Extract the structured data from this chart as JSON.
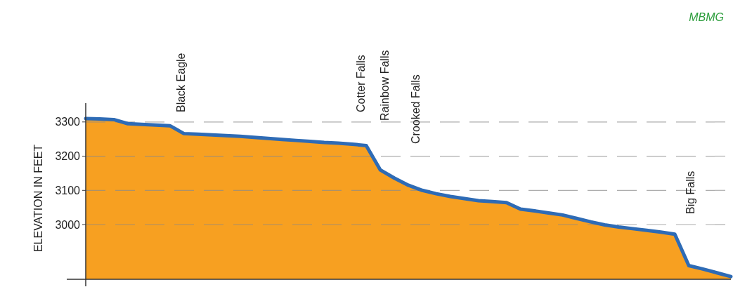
{
  "chart_data": {
    "type": "area",
    "ylabel": "ELEVATION IN FEET",
    "categories": [
      null,
      null,
      null,
      null,
      null,
      null,
      null,
      null,
      null,
      null,
      null,
      null,
      null,
      null,
      null,
      null,
      null,
      null,
      null,
      null,
      null,
      null,
      null,
      null,
      null,
      null,
      null,
      null,
      null,
      null,
      null,
      null,
      null,
      null,
      null,
      null,
      null,
      null,
      null,
      null,
      null,
      null,
      null,
      null,
      null,
      null,
      null
    ],
    "series": [
      {
        "color": "#f7a021",
        "values": [
          3310,
          3309,
          3307,
          3295,
          3293,
          3291,
          3289,
          3266,
          3264,
          3262,
          3260,
          3258,
          3255,
          3252,
          3249,
          3246,
          3243,
          3240,
          3238,
          3235,
          3231,
          3160,
          3136,
          3115,
          3100,
          3090,
          3082,
          3076,
          3070,
          3067,
          3064,
          3045,
          3040,
          3034,
          3028,
          3018,
          3008,
          2999,
          2993,
          2988,
          2983,
          2978,
          2972,
          2880,
          2870,
          2859,
          2848
        ]
      },
      {
        "type": "line",
        "color": "#2e6bb5",
        "values": [
          3310,
          3309,
          3307,
          3295,
          3293,
          3291,
          3289,
          3266,
          3264,
          3262,
          3260,
          3258,
          3255,
          3252,
          3249,
          3246,
          3243,
          3240,
          3238,
          3235,
          3231,
          3160,
          3136,
          3115,
          3100,
          3090,
          3082,
          3076,
          3070,
          3067,
          3064,
          3045,
          3040,
          3034,
          3028,
          3018,
          3008,
          2999,
          2993,
          2988,
          2983,
          2978,
          2972,
          2880,
          2870,
          2859,
          2848
        ]
      }
    ],
    "ylim": [
      2840,
      3355
    ],
    "yticks": [
      3000,
      3100,
      3200,
      3300
    ],
    "grid": "y",
    "annotations": [
      "Black Eagle",
      "Cotter Falls",
      "Rainbow Falls",
      "Crooked Falls",
      "Big Falls",
      "MBMG"
    ]
  }
}
